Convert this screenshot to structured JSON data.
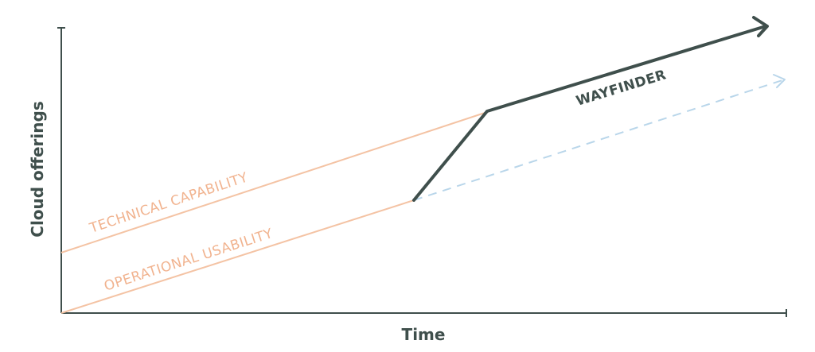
{
  "axes": {
    "x_label": "Time",
    "y_label": "Cloud offerings"
  },
  "lines": {
    "technical_capability": {
      "label": "TECHNICAL CAPABILITY",
      "color": "#f4c3a4"
    },
    "operational_usability": {
      "label": "OPERATIONAL USABILITY",
      "color": "#f4c3a4"
    },
    "wayfinder": {
      "label": "WAYFINDER",
      "color": "#3f4f4c"
    },
    "projection": {
      "color": "#b9d6ea",
      "style": "dashed"
    }
  }
}
